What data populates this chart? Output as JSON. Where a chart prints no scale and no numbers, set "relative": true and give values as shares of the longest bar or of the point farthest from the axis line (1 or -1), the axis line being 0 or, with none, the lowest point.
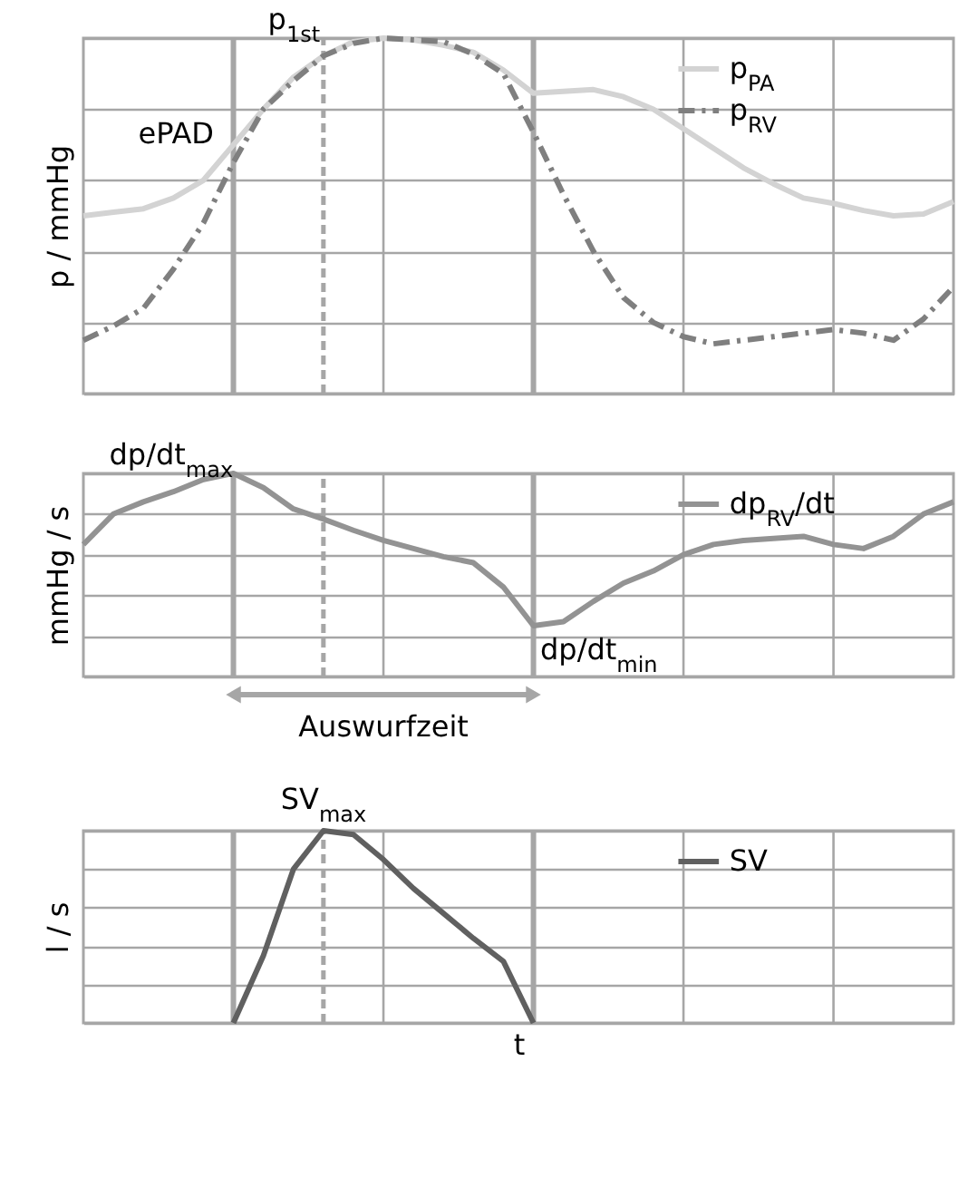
{
  "chart_data": [
    {
      "type": "line",
      "ylabel": "p / mmHg",
      "relative": true,
      "grid": true,
      "legend": "top right",
      "marker": "none",
      "categories": [
        null,
        null,
        null,
        null,
        null,
        null,
        null,
        null,
        null,
        null,
        null,
        null,
        null,
        null,
        null,
        null,
        null,
        null,
        null,
        null,
        null,
        null,
        null,
        null,
        null,
        null,
        null,
        null,
        null,
        null
      ],
      "series": [
        {
          "name": "p$_{PA}$",
          "color": "#d3d3d3",
          "line_style": "solid",
          "values": [
            0.5,
            0.51,
            0.52,
            0.55,
            0.6,
            0.7,
            0.8,
            0.89,
            0.95,
            0.99,
            1,
            0.995,
            0.98,
            0.96,
            0.91,
            0.845,
            0.85,
            0.855,
            0.835,
            0.8,
            0.745,
            0.69,
            0.635,
            0.59,
            0.55,
            0.535,
            0.515,
            0.5,
            0.505,
            0.54
          ]
        },
        {
          "name": "p$_{RV}$",
          "color": "#7f7f7f",
          "line_style": "dashed",
          "values": [
            0.15,
            0.19,
            0.24,
            0.35,
            0.48,
            0.65,
            0.8,
            0.88,
            0.95,
            0.985,
            1,
            0.995,
            0.99,
            0.955,
            0.9,
            0.735,
            0.56,
            0.4,
            0.27,
            0.2,
            0.16,
            0.14,
            0.15,
            0.16,
            0.17,
            0.18,
            0.17,
            0.15,
            0.21,
            0.3
          ]
        }
      ],
      "annotations": [
        "p$_{1st}$",
        "ePAD"
      ]
    },
    {
      "type": "line",
      "ylabel": "mmHg / s",
      "relative": true,
      "grid": true,
      "legend": "top right",
      "marker": "none",
      "categories": [
        null,
        null,
        null,
        null,
        null,
        null,
        null,
        null,
        null,
        null,
        null,
        null,
        null,
        null,
        null,
        null,
        null,
        null,
        null,
        null,
        null,
        null,
        null,
        null,
        null,
        null,
        null,
        null,
        null,
        null
      ],
      "series": [
        {
          "name": "dp$_{RV}$/dt",
          "color": "#939393",
          "line_style": "solid",
          "values": [
            0.65,
            0.8,
            0.86,
            0.91,
            0.97,
            1,
            0.93,
            0.825,
            0.775,
            0.72,
            0.67,
            0.63,
            0.59,
            0.56,
            0.44,
            0.25,
            0.27,
            0.37,
            0.46,
            0.52,
            0.6,
            0.65,
            0.67,
            0.68,
            0.69,
            0.65,
            0.63,
            0.69,
            0.8,
            0.86
          ]
        }
      ],
      "annotations": [
        "dp/dt$_{max}$",
        "dp/dt$_{min}$",
        "Auswurfzeit"
      ]
    },
    {
      "type": "line",
      "ylabel": "l / s",
      "xlabel": "t",
      "relative": true,
      "grid": true,
      "legend": "top right",
      "marker": "none",
      "categories": [
        null,
        null,
        null,
        null,
        null,
        null,
        null,
        null,
        null,
        null,
        null,
        null,
        null,
        null,
        null,
        null,
        null,
        null,
        null,
        null,
        null,
        null,
        null,
        null,
        null,
        null,
        null,
        null,
        null,
        null
      ],
      "series": [
        {
          "name": "SV",
          "color": "#606060",
          "line_style": "solid",
          "values": [
            null,
            null,
            null,
            null,
            null,
            0,
            0.35,
            0.8,
            1,
            0.98,
            0.85,
            0.7,
            0.57,
            0.44,
            0.32,
            0,
            null,
            null,
            null,
            null,
            null,
            null,
            null,
            null,
            null,
            null,
            null,
            null,
            null,
            null
          ]
        }
      ],
      "annotations": [
        "SV$_{max}$"
      ]
    }
  ]
}
